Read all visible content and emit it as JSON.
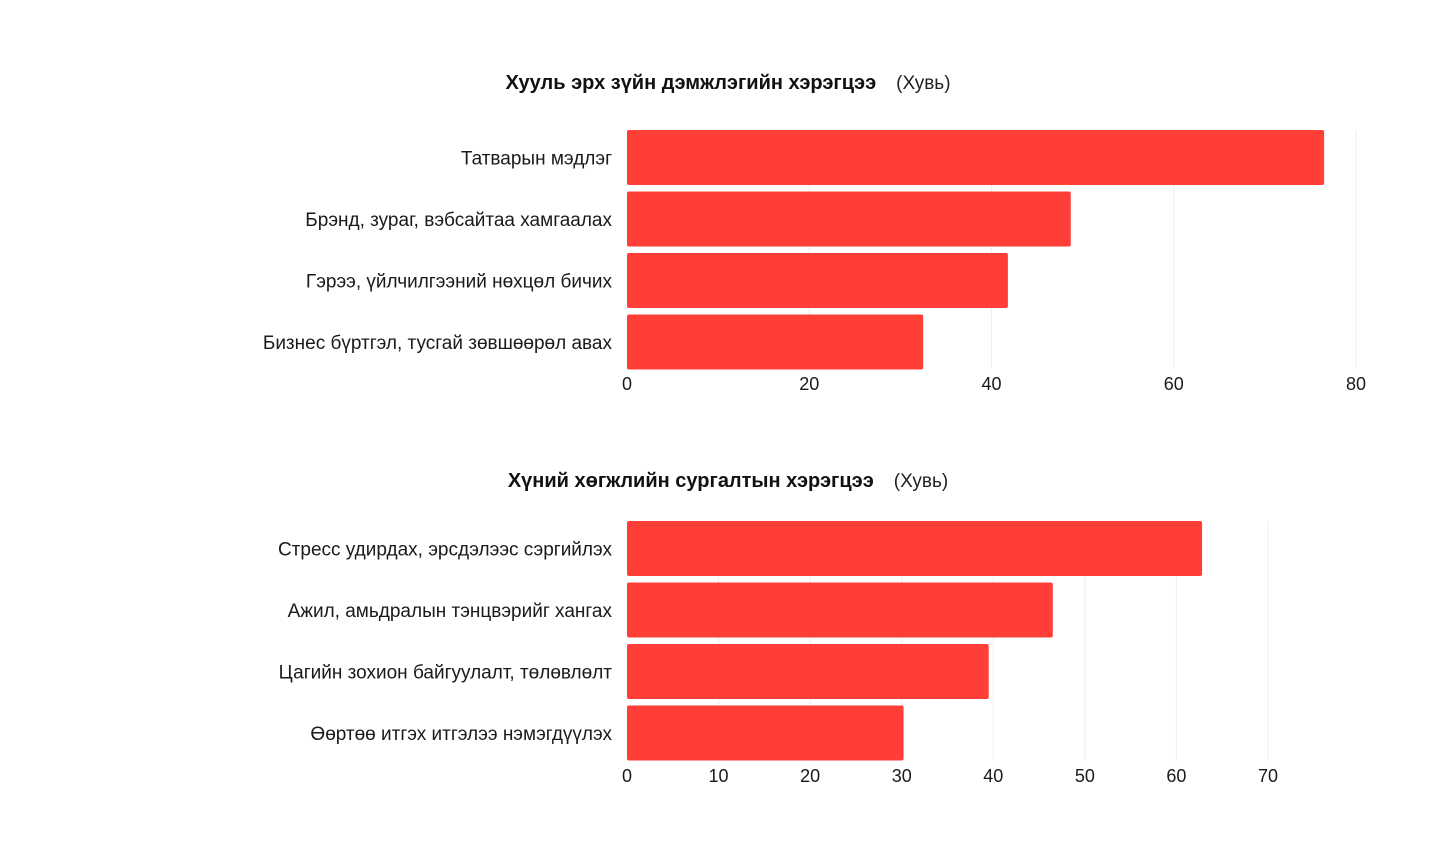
{
  "chart_data": [
    {
      "type": "bar",
      "orientation": "horizontal",
      "title": "Хууль эрх зүйн дэмжлэгийн хэрэгцээ",
      "unit": "(Хувь)",
      "categories": [
        "Татварын мэдлэг",
        "Брэнд, зураг, вэбсайтаа хамгаалах",
        "Гэрээ, үйлчилгээний нөхцөл бичих",
        "Бизнес бүртгэл, тусгай зөвшөөрөл авах"
      ],
      "values": [
        76.5,
        48.7,
        41.8,
        32.5
      ],
      "xlim": [
        0,
        80
      ],
      "xticks": [
        0,
        20,
        40,
        60,
        80
      ],
      "bar_color": "#ff3e38",
      "grid": "vertical"
    },
    {
      "type": "bar",
      "orientation": "horizontal",
      "title": "Хүний хөгжлийн сургалтын хэрэгцээ",
      "unit": "(Хувь)",
      "categories": [
        "Стресс удирдах, эрсдэлээс сэргийлэх",
        "Ажил, амьдралын тэнцвэрийг хангах",
        "Цагийн зохион байгуулалт, төлөвлөлт",
        "Өөртөө итгэх итгэлээ нэмэгдүүлэх"
      ],
      "values": [
        62.8,
        46.5,
        39.5,
        30.2
      ],
      "xlim": [
        0,
        70
      ],
      "xticks": [
        0,
        10,
        20,
        30,
        40,
        50,
        60,
        70
      ],
      "bar_color": "#ff3e38",
      "grid": "vertical"
    }
  ]
}
